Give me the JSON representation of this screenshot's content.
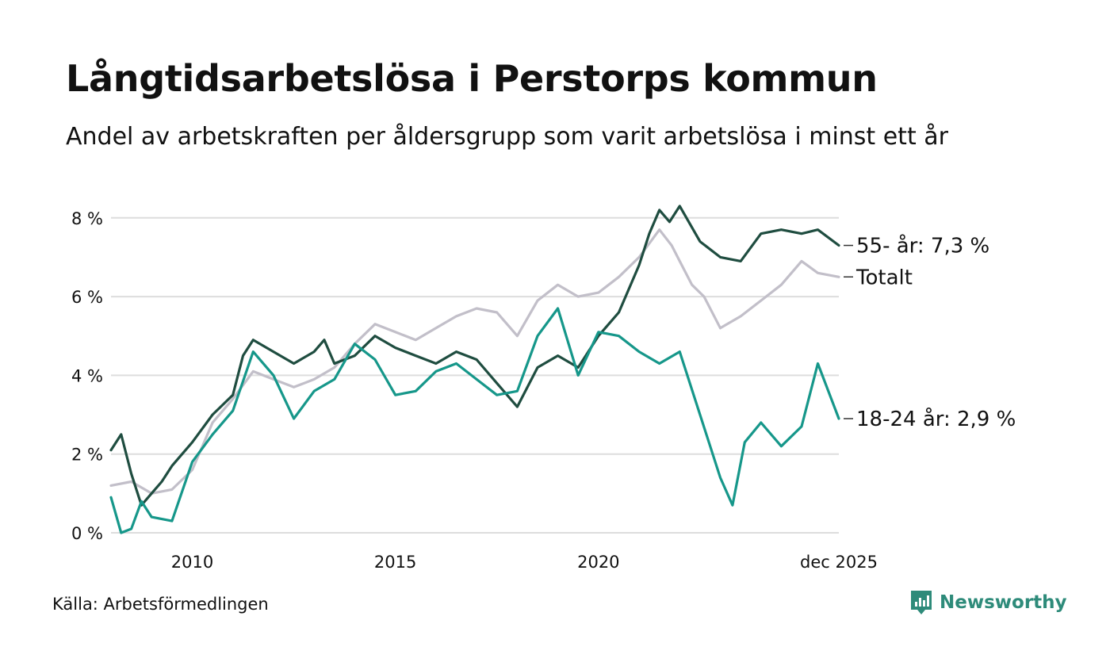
{
  "header": {
    "title": "Långtidsarbetslösa i Perstorps kommun",
    "subtitle": "Andel av arbetskraften per åldersgrupp som varit arbetslösa i minst ett år"
  },
  "footer": {
    "source": "Källa: Arbetsförmedlingen",
    "brand": "Newsworthy"
  },
  "colors": {
    "total": "#c2bfc9",
    "age55": "#1f4d40",
    "age1824": "#16978a",
    "grid": "#dddddd",
    "brand": "#2e8b7a"
  },
  "chart_data": {
    "type": "line",
    "title": "Långtidsarbetslösa i Perstorps kommun",
    "ylim": [
      0,
      8.6
    ],
    "y_ticks": [
      0,
      2,
      4,
      6,
      8
    ],
    "y_tick_labels": [
      "0 %",
      "2 %",
      "4 %",
      "6 %",
      "8 %"
    ],
    "x_range": [
      2008.0,
      2025.917
    ],
    "x_ticks": [
      2010,
      2015,
      2020,
      2025.917
    ],
    "x_tick_labels": [
      "2010",
      "2015",
      "2020",
      "dec 2025"
    ],
    "grid": true,
    "series": [
      {
        "name": "Totalt",
        "color_key": "total",
        "label": "Totalt",
        "points": [
          [
            2008.0,
            1.2
          ],
          [
            2008.5,
            1.3
          ],
          [
            2009.0,
            1.0
          ],
          [
            2009.5,
            1.1
          ],
          [
            2010.0,
            1.6
          ],
          [
            2010.5,
            2.8
          ],
          [
            2011.0,
            3.4
          ],
          [
            2011.5,
            4.1
          ],
          [
            2012.0,
            3.9
          ],
          [
            2012.5,
            3.7
          ],
          [
            2013.0,
            3.9
          ],
          [
            2013.5,
            4.2
          ],
          [
            2014.0,
            4.8
          ],
          [
            2014.5,
            5.3
          ],
          [
            2015.0,
            5.1
          ],
          [
            2015.5,
            4.9
          ],
          [
            2016.0,
            5.2
          ],
          [
            2016.5,
            5.5
          ],
          [
            2017.0,
            5.7
          ],
          [
            2017.5,
            5.6
          ],
          [
            2018.0,
            5.0
          ],
          [
            2018.5,
            5.9
          ],
          [
            2019.0,
            6.3
          ],
          [
            2019.5,
            6.0
          ],
          [
            2020.0,
            6.1
          ],
          [
            2020.5,
            6.5
          ],
          [
            2021.0,
            7.0
          ],
          [
            2021.5,
            7.7
          ],
          [
            2021.8,
            7.3
          ],
          [
            2022.0,
            6.9
          ],
          [
            2022.3,
            6.3
          ],
          [
            2022.6,
            6.0
          ],
          [
            2023.0,
            5.2
          ],
          [
            2023.5,
            5.5
          ],
          [
            2024.0,
            5.9
          ],
          [
            2024.5,
            6.3
          ],
          [
            2025.0,
            6.9
          ],
          [
            2025.4,
            6.6
          ],
          [
            2025.917,
            6.5
          ]
        ]
      },
      {
        "name": "55- år",
        "color_key": "age55",
        "label": "55- år: 7,3 %",
        "points": [
          [
            2008.0,
            2.1
          ],
          [
            2008.25,
            2.5
          ],
          [
            2008.5,
            1.5
          ],
          [
            2008.75,
            0.7
          ],
          [
            2009.0,
            1.0
          ],
          [
            2009.25,
            1.3
          ],
          [
            2009.5,
            1.7
          ],
          [
            2010.0,
            2.3
          ],
          [
            2010.5,
            3.0
          ],
          [
            2011.0,
            3.5
          ],
          [
            2011.25,
            4.5
          ],
          [
            2011.5,
            4.9
          ],
          [
            2012.0,
            4.6
          ],
          [
            2012.5,
            4.3
          ],
          [
            2013.0,
            4.6
          ],
          [
            2013.25,
            4.9
          ],
          [
            2013.5,
            4.3
          ],
          [
            2014.0,
            4.5
          ],
          [
            2014.5,
            5.0
          ],
          [
            2015.0,
            4.7
          ],
          [
            2015.5,
            4.5
          ],
          [
            2016.0,
            4.3
          ],
          [
            2016.5,
            4.6
          ],
          [
            2017.0,
            4.4
          ],
          [
            2017.5,
            3.8
          ],
          [
            2018.0,
            3.2
          ],
          [
            2018.5,
            4.2
          ],
          [
            2019.0,
            4.5
          ],
          [
            2019.5,
            4.2
          ],
          [
            2020.0,
            5.0
          ],
          [
            2020.5,
            5.6
          ],
          [
            2021.0,
            6.8
          ],
          [
            2021.25,
            7.6
          ],
          [
            2021.5,
            8.2
          ],
          [
            2021.75,
            7.9
          ],
          [
            2022.0,
            8.3
          ],
          [
            2022.5,
            7.4
          ],
          [
            2023.0,
            7.0
          ],
          [
            2023.5,
            6.9
          ],
          [
            2024.0,
            7.6
          ],
          [
            2024.5,
            7.7
          ],
          [
            2025.0,
            7.6
          ],
          [
            2025.4,
            7.7
          ],
          [
            2025.917,
            7.3
          ]
        ]
      },
      {
        "name": "18-24 år",
        "color_key": "age1824",
        "label": "18-24 år: 2,9 %",
        "points": [
          [
            2008.0,
            0.9
          ],
          [
            2008.25,
            0.0
          ],
          [
            2008.5,
            0.1
          ],
          [
            2008.75,
            0.8
          ],
          [
            2009.0,
            0.4
          ],
          [
            2009.5,
            0.3
          ],
          [
            2010.0,
            1.8
          ],
          [
            2010.5,
            2.5
          ],
          [
            2011.0,
            3.1
          ],
          [
            2011.5,
            4.6
          ],
          [
            2012.0,
            4.0
          ],
          [
            2012.5,
            2.9
          ],
          [
            2013.0,
            3.6
          ],
          [
            2013.5,
            3.9
          ],
          [
            2014.0,
            4.8
          ],
          [
            2014.5,
            4.4
          ],
          [
            2015.0,
            3.5
          ],
          [
            2015.5,
            3.6
          ],
          [
            2016.0,
            4.1
          ],
          [
            2016.5,
            4.3
          ],
          [
            2017.0,
            3.9
          ],
          [
            2017.5,
            3.5
          ],
          [
            2018.0,
            3.6
          ],
          [
            2018.5,
            5.0
          ],
          [
            2019.0,
            5.7
          ],
          [
            2019.5,
            4.0
          ],
          [
            2020.0,
            5.1
          ],
          [
            2020.5,
            5.0
          ],
          [
            2021.0,
            4.6
          ],
          [
            2021.5,
            4.3
          ],
          [
            2022.0,
            4.6
          ],
          [
            2022.5,
            3.0
          ],
          [
            2023.0,
            1.4
          ],
          [
            2023.3,
            0.7
          ],
          [
            2023.6,
            2.3
          ],
          [
            2024.0,
            2.8
          ],
          [
            2024.5,
            2.2
          ],
          [
            2025.0,
            2.7
          ],
          [
            2025.4,
            4.3
          ],
          [
            2025.917,
            2.9
          ]
        ]
      }
    ]
  }
}
